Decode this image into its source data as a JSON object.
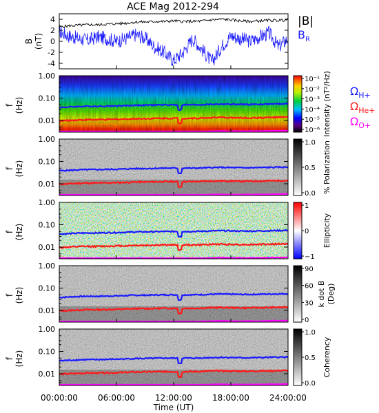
{
  "title": "ACE Mag 2012-294",
  "colors": {
    "br": "#1a1aff",
    "absb": "#000000",
    "h_plus": "#1a1aff",
    "he_plus": "#ff1a1a",
    "o_plus": "#ff00ff"
  },
  "chart_data": [
    {
      "type": "line",
      "xlabel": "Time (UT)",
      "x_ticks": [
        "00:00:00",
        "06:00:00",
        "12:00:00",
        "18:00:00",
        "24:00:00"
      ],
      "xlim_hours": [
        0,
        24
      ],
      "ylabel": "B",
      "yunit": "(nT)",
      "ylim": [
        -5,
        5
      ],
      "yticks": [
        "4",
        "2",
        "0",
        "-2",
        "-4"
      ],
      "series": [
        {
          "name": "|B|",
          "x_hours": [
            0,
            1,
            2,
            3,
            4,
            5,
            6,
            7,
            8,
            9,
            10,
            11,
            12,
            13,
            14,
            15,
            16,
            17,
            18,
            19,
            20,
            21,
            22,
            23,
            24
          ],
          "values": [
            2.6,
            2.8,
            2.9,
            3.0,
            3.0,
            3.1,
            3.2,
            3.3,
            3.5,
            3.5,
            3.6,
            3.6,
            3.7,
            3.6,
            3.6,
            3.7,
            3.9,
            4.0,
            3.9,
            3.7,
            3.6,
            3.7,
            3.8,
            3.8,
            3.9
          ]
        },
        {
          "name": "B_R",
          "x_hours": [
            0,
            1,
            2,
            3,
            4,
            5,
            6,
            7,
            8,
            9,
            10,
            11,
            12,
            13,
            14,
            15,
            16,
            17,
            18,
            19,
            20,
            21,
            22,
            23,
            24
          ],
          "values": [
            1.8,
            1.0,
            0.5,
            0.2,
            0.8,
            0.5,
            0.0,
            0.5,
            1.2,
            0.6,
            -1.0,
            -2.0,
            -3.5,
            -2.0,
            0.5,
            -1.5,
            -3.8,
            -1.0,
            1.0,
            0.5,
            0.0,
            0.8,
            1.5,
            -1.0,
            0.5
          ]
        }
      ]
    },
    {
      "type": "heatmap",
      "ylabel": "f",
      "yunit": "(Hz)",
      "yscale": "log",
      "ylim": [
        0.003,
        1.0
      ],
      "yticks": [
        "1.00",
        "0.10",
        "0.01"
      ],
      "colorbar_label": "Intensity (nT²/Hz)",
      "colorbar_ticks": [
        "10⁻¹",
        "10⁻²",
        "10⁻³",
        "10⁻⁴",
        "10⁻⁵",
        "10⁻⁶"
      ],
      "legend": [
        "Ω",
        "Ω",
        "Ω"
      ],
      "legend_sub": [
        "H+",
        "He+",
        "O+"
      ]
    },
    {
      "type": "heatmap",
      "ylabel": "f",
      "yunit": "(Hz)",
      "yscale": "log",
      "ylim": [
        0.003,
        1.0
      ],
      "yticks": [
        "1.00",
        "0.10",
        "0.01"
      ],
      "colorbar_label": "% Polarization",
      "colorbar_ticks": [
        "1.0",
        "0.5",
        "0.0"
      ]
    },
    {
      "type": "heatmap",
      "ylabel": "f",
      "yunit": "(Hz)",
      "yscale": "log",
      "ylim": [
        0.003,
        1.0
      ],
      "yticks": [
        "1.00",
        "0.10",
        "0.01"
      ],
      "colorbar_label": "Ellipticity",
      "colorbar_ticks": [
        "1",
        "0",
        "−1"
      ]
    },
    {
      "type": "heatmap",
      "ylabel": "f",
      "yunit": "(Hz)",
      "yscale": "log",
      "ylim": [
        0.003,
        1.0
      ],
      "yticks": [
        "1.00",
        "0.10",
        "0.01"
      ],
      "colorbar_label": "k dot B",
      "colorbar_unit": "(Deg)",
      "colorbar_ticks": [
        "90",
        "60",
        "30",
        "0"
      ]
    },
    {
      "type": "heatmap",
      "ylabel": "f",
      "yunit": "(Hz)",
      "yscale": "log",
      "ylim": [
        0.003,
        1.0
      ],
      "yticks": [
        "1.00",
        "0.10",
        "0.01"
      ],
      "colorbar_label": "Coherency",
      "colorbar_ticks": [
        "1.0",
        "0.5",
        "0.0"
      ]
    }
  ],
  "gyrofrequency_lines": {
    "x_hours": [
      0,
      1,
      2,
      3,
      4,
      5,
      6,
      7,
      8,
      9,
      10,
      11,
      12,
      13,
      14,
      15,
      16,
      17,
      18,
      19,
      20,
      21,
      22,
      23,
      24
    ],
    "h_plus_hz": [
      0.038,
      0.04,
      0.042,
      0.043,
      0.043,
      0.044,
      0.045,
      0.046,
      0.048,
      0.048,
      0.049,
      0.05,
      0.05,
      0.05,
      0.05,
      0.051,
      0.053,
      0.054,
      0.053,
      0.052,
      0.052,
      0.053,
      0.054,
      0.055,
      0.056
    ],
    "he_plus_hz": [
      0.0095,
      0.01,
      0.0105,
      0.0108,
      0.0108,
      0.011,
      0.0113,
      0.0115,
      0.012,
      0.012,
      0.0123,
      0.0125,
      0.0125,
      0.0125,
      0.0125,
      0.0128,
      0.0133,
      0.0135,
      0.0133,
      0.013,
      0.013,
      0.0133,
      0.0135,
      0.0138,
      0.014
    ],
    "o_plus_hz": [
      0.0024,
      0.0025,
      0.0026,
      0.0027,
      0.0027,
      0.0028,
      0.0028,
      0.0029,
      0.003,
      0.003,
      0.0031,
      0.0031,
      0.0031,
      0.0031,
      0.0031,
      0.0032,
      0.0033,
      0.0034,
      0.0033,
      0.0033,
      0.0033,
      0.0033,
      0.0034,
      0.0034,
      0.0035
    ]
  }
}
